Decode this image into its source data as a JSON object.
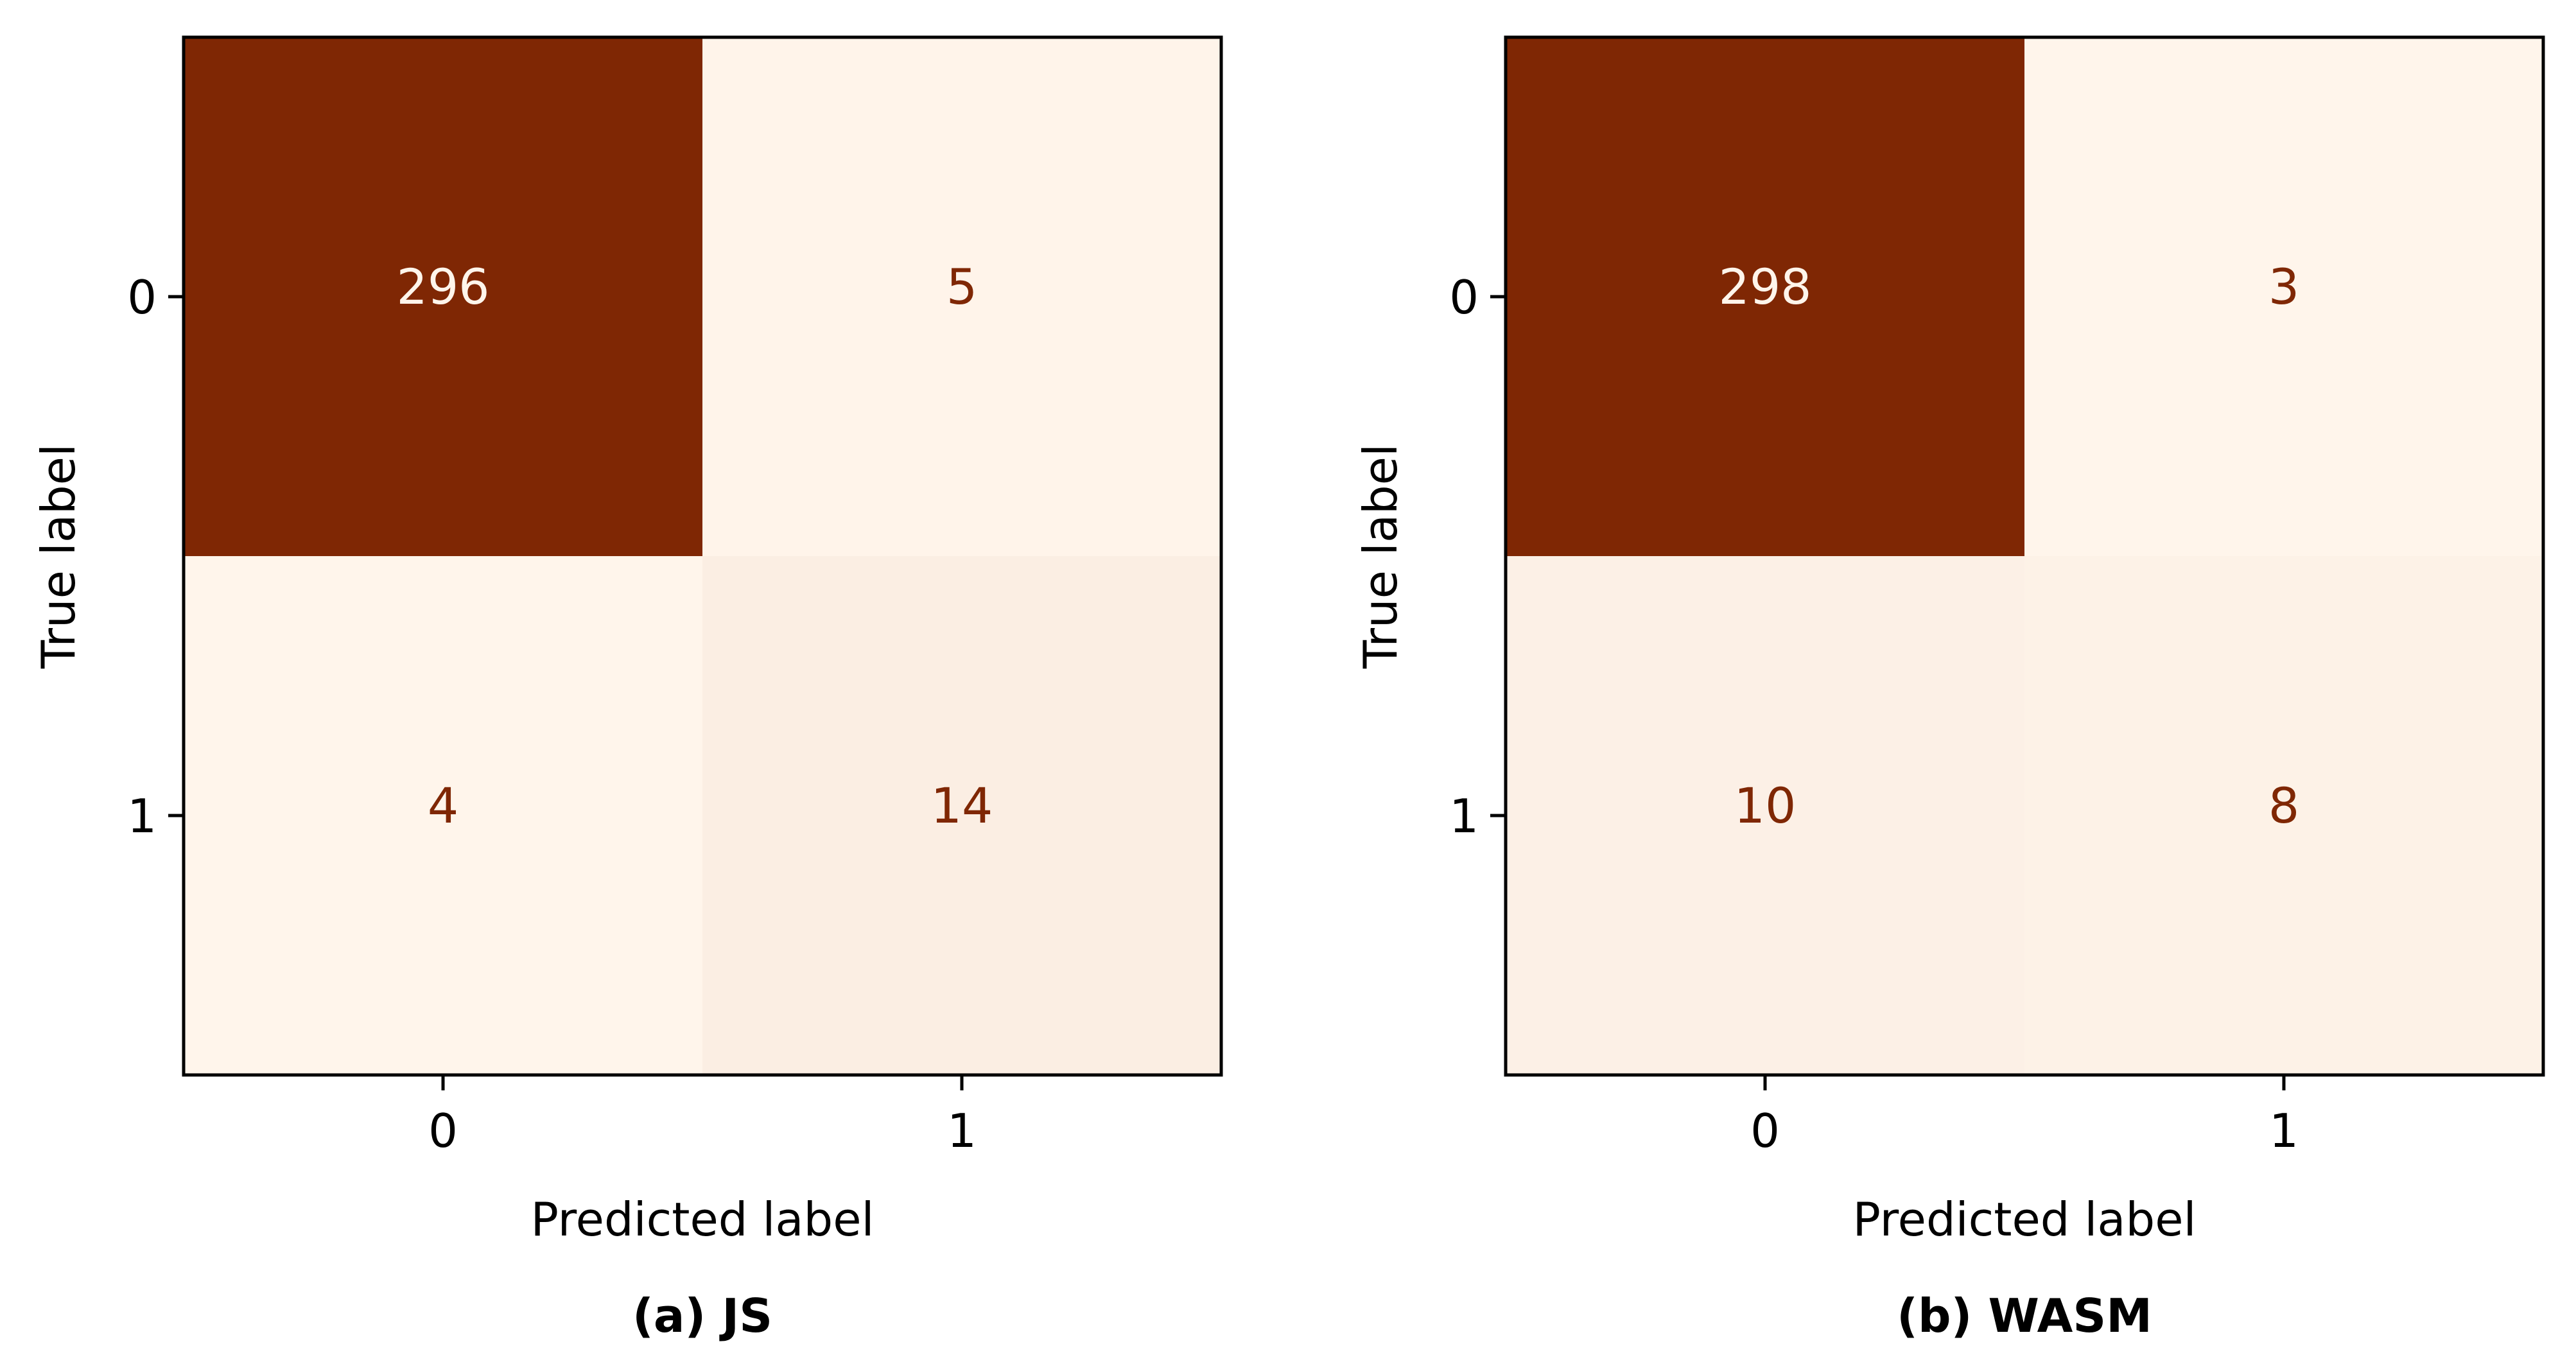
{
  "colors": {
    "colormap": "Oranges-like (Brown to cream)",
    "dark_cell": "#7f2704",
    "light_cell": "#fff5eb",
    "text_on_dark": "#fff5eb",
    "text_on_light": "#7f2704",
    "frame": "#000000"
  },
  "chart_data": [
    {
      "type": "heatmap",
      "subtype": "confusion_matrix",
      "caption": "(a) JS",
      "xlabel": "Predicted label",
      "ylabel": "True label",
      "x_tick_labels": [
        "0",
        "1"
      ],
      "y_tick_labels": [
        "0",
        "1"
      ],
      "matrix": [
        [
          296,
          5
        ],
        [
          4,
          14
        ]
      ],
      "grid": false,
      "colorbar": false
    },
    {
      "type": "heatmap",
      "subtype": "confusion_matrix",
      "caption": "(b) WASM",
      "xlabel": "Predicted label",
      "ylabel": "True label",
      "x_tick_labels": [
        "0",
        "1"
      ],
      "y_tick_labels": [
        "0",
        "1"
      ],
      "matrix": [
        [
          298,
          3
        ],
        [
          10,
          8
        ]
      ],
      "grid": false,
      "colorbar": false
    }
  ]
}
